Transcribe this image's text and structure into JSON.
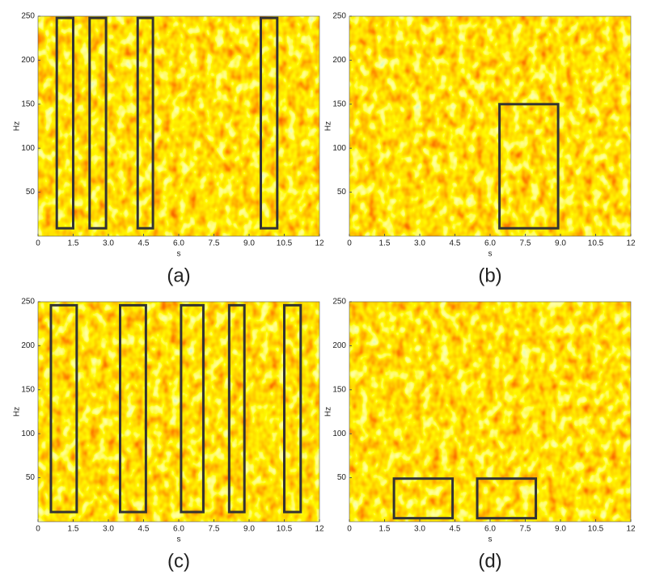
{
  "chart_data": [
    {
      "type": "spectrogram",
      "caption": "(a)",
      "xlabel": "s",
      "ylabel": "Hz",
      "xlim": [
        0,
        12
      ],
      "ylim": [
        0,
        250
      ],
      "xticks": [
        0,
        1.5,
        {
          "value": 3,
          "label": "3.0"
        },
        4.5,
        {
          "value": 6,
          "label": "6.0"
        },
        7.5,
        {
          "value": 9,
          "label": "9.0"
        },
        10.5,
        12
      ],
      "yticks": [
        50,
        100,
        150,
        200,
        250
      ],
      "regions": [
        {
          "x": [
            0.8,
            1.5
          ],
          "y": [
            9,
            248
          ]
        },
        {
          "x": [
            2.2,
            2.9
          ],
          "y": [
            9,
            248
          ]
        },
        {
          "x": [
            4.25,
            4.9
          ],
          "y": [
            9,
            248
          ]
        },
        {
          "x": [
            9.5,
            10.2
          ],
          "y": [
            9,
            248
          ]
        }
      ]
    },
    {
      "type": "spectrogram",
      "caption": "(b)",
      "xlabel": "s",
      "ylabel": "Hz",
      "xlim": [
        0,
        12
      ],
      "ylim": [
        0,
        250
      ],
      "xticks": [
        0,
        1.5,
        {
          "value": 3,
          "label": "3.0"
        },
        4.5,
        {
          "value": 6,
          "label": "6.0"
        },
        7.5,
        {
          "value": 9,
          "label": "9.0"
        },
        10.5,
        12
      ],
      "yticks": [
        50,
        100,
        150,
        200,
        250
      ],
      "regions": [
        {
          "x": [
            6.4,
            8.9
          ],
          "y": [
            9,
            150
          ]
        }
      ]
    },
    {
      "type": "spectrogram",
      "caption": "(c)",
      "xlabel": "s",
      "ylabel": "Hz",
      "xlim": [
        0,
        12
      ],
      "ylim": [
        0,
        250
      ],
      "xticks": [
        0,
        1.5,
        {
          "value": 3,
          "label": "3.0"
        },
        4.5,
        {
          "value": 6,
          "label": "6.0"
        },
        7.5,
        {
          "value": 9,
          "label": "9.0"
        },
        10.5,
        12
      ],
      "yticks": [
        50,
        100,
        150,
        200,
        250
      ],
      "regions": [
        {
          "x": [
            0.55,
            1.65
          ],
          "y": [
            11,
            246
          ]
        },
        {
          "x": [
            3.5,
            4.6
          ],
          "y": [
            11,
            246
          ]
        },
        {
          "x": [
            6.1,
            7.05
          ],
          "y": [
            11,
            246
          ]
        },
        {
          "x": [
            8.15,
            8.8
          ],
          "y": [
            11,
            246
          ]
        },
        {
          "x": [
            10.5,
            11.2
          ],
          "y": [
            11,
            246
          ]
        }
      ]
    },
    {
      "type": "spectrogram",
      "caption": "(d)",
      "xlabel": "s",
      "ylabel": "Hz",
      "xlim": [
        0,
        12
      ],
      "ylim": [
        0,
        250
      ],
      "xticks": [
        0,
        1.5,
        {
          "value": 3,
          "label": "3.0"
        },
        4.5,
        {
          "value": 6,
          "label": "6.0"
        },
        7.5,
        {
          "value": 9,
          "label": "9.0"
        },
        10.5,
        12
      ],
      "yticks": [
        50,
        100,
        150,
        200,
        250
      ],
      "regions": [
        {
          "x": [
            1.9,
            4.4
          ],
          "y": [
            4,
            49
          ]
        },
        {
          "x": [
            5.45,
            7.95
          ],
          "y": [
            4,
            49
          ]
        }
      ]
    }
  ]
}
